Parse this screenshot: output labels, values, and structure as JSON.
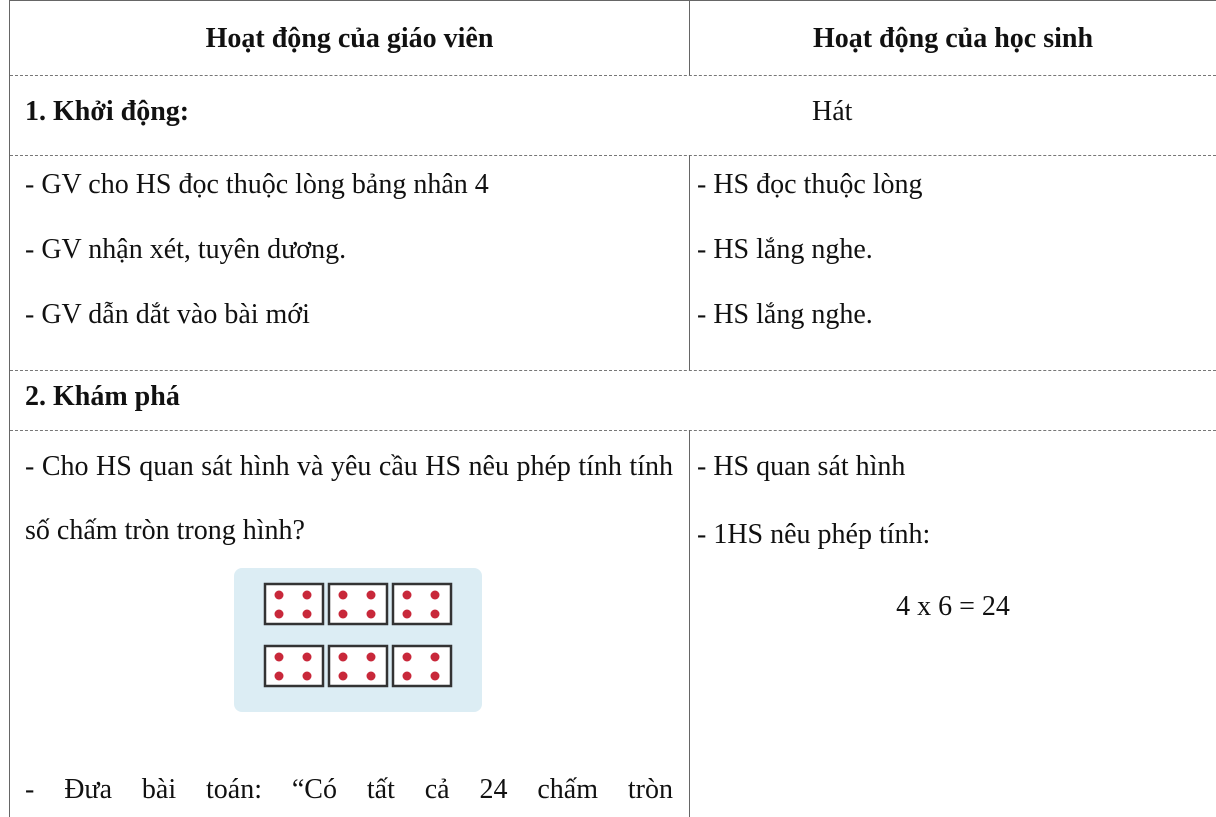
{
  "header": {
    "teacher": "Hoạt động của giáo viên",
    "student": "Hoạt động của học sinh"
  },
  "rows": [
    {
      "teacher": "1. Khởi động:",
      "student": "Hát"
    },
    {
      "teacher": [
        "- GV cho HS đọc thuộc lòng bảng nhân 4",
        "- GV nhận xét, tuyên dương.",
        "- GV dẫn dắt vào bài mới"
      ],
      "student": [
        "- HS đọc thuộc lòng",
        "- HS lắng nghe.",
        "- HS lắng nghe."
      ]
    },
    {
      "teacher": "2. Khám phá"
    },
    {
      "teacher": [
        "- Cho HS quan sát hình và yêu cầu HS nêu phép tính tính số chấm tròn trong hình?",
        "- Đưa bài toán: “Có tất cả 24 chấm tròn"
      ],
      "student": [
        "- HS quan sát hình",
        "- 1HS nêu phép tính:",
        "4 x 6 = 24"
      ]
    }
  ]
}
